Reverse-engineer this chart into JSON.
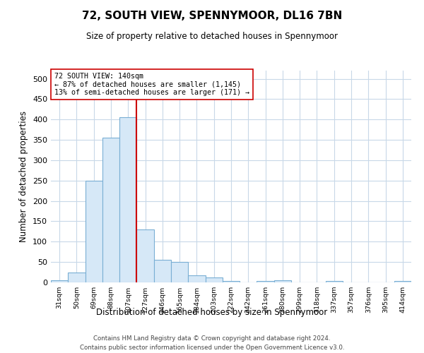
{
  "title": "72, SOUTH VIEW, SPENNYMOOR, DL16 7BN",
  "subtitle": "Size of property relative to detached houses in Spennymoor",
  "xlabel": "Distribution of detached houses by size in Spennymoor",
  "ylabel": "Number of detached properties",
  "footer_line1": "Contains HM Land Registry data © Crown copyright and database right 2024.",
  "footer_line2": "Contains public sector information licensed under the Open Government Licence v3.0.",
  "bin_labels": [
    "31sqm",
    "50sqm",
    "69sqm",
    "88sqm",
    "107sqm",
    "127sqm",
    "146sqm",
    "165sqm",
    "184sqm",
    "203sqm",
    "222sqm",
    "242sqm",
    "261sqm",
    "280sqm",
    "299sqm",
    "318sqm",
    "337sqm",
    "357sqm",
    "376sqm",
    "395sqm",
    "414sqm"
  ],
  "bar_values": [
    5,
    25,
    250,
    355,
    405,
    130,
    55,
    50,
    18,
    12,
    3,
    0,
    4,
    6,
    0,
    0,
    4,
    0,
    0,
    0,
    3
  ],
  "bar_color": "#d6e8f7",
  "bar_edge_color": "#7aafd4",
  "property_line_label": "72 SOUTH VIEW: 140sqm",
  "annotation_line1": "← 87% of detached houses are smaller (1,145)",
  "annotation_line2": "13% of semi-detached houses are larger (171) →",
  "line_color": "#cc0000",
  "annotation_box_color": "#ffffff",
  "annotation_box_edge": "#cc0000",
  "property_line_bin": 5,
  "ylim": [
    0,
    520
  ],
  "yticks": [
    0,
    50,
    100,
    150,
    200,
    250,
    300,
    350,
    400,
    450,
    500
  ],
  "background_color": "#ffffff",
  "grid_color": "#c8d8e8"
}
